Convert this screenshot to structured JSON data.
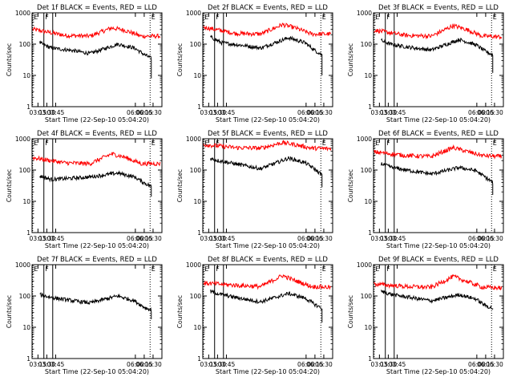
{
  "chart_data": [
    {
      "type": "line",
      "title": "Det 1f BLACK = Events, RED = LLD",
      "xlabel": "Start Time (22-Sep-10 05:04:20)",
      "ylabel": "Counts/sec",
      "yscale": "log",
      "ylim": [
        1,
        1000
      ],
      "xlim": [
        "03:05",
        "06:45"
      ],
      "x_ticks": [
        "03:15",
        "03:30",
        "03:45",
        "06:00",
        "06:15",
        "06:30"
      ],
      "y_ticks": [
        "1",
        "10",
        "100",
        "1000"
      ],
      "markers": [
        {
          "label": "E",
          "t": "03:06"
        },
        {
          "label": "F",
          "t": "03:25"
        },
        {
          "label": "",
          "t": "03:40"
        },
        {
          "label": "E",
          "t": "06:25"
        }
      ],
      "series": [
        {
          "name": "RED = LLD",
          "color": "#ff0000",
          "t_start": "03:06",
          "t_end": "06:42",
          "points": [
            [
              0,
              300
            ],
            [
              0.25,
              190
            ],
            [
              0.45,
              180
            ],
            [
              0.62,
              330
            ],
            [
              0.72,
              280
            ],
            [
              0.85,
              180
            ],
            [
              1,
              180
            ]
          ]
        },
        {
          "name": "BLACK = Events",
          "color": "#000000",
          "t_start": "03:18",
          "t_end": "06:27",
          "points": [
            [
              0,
              110
            ],
            [
              0.1,
              75
            ],
            [
              0.3,
              62
            ],
            [
              0.45,
              50
            ],
            [
              0.7,
              100
            ],
            [
              0.85,
              75
            ],
            [
              0.93,
              48
            ],
            [
              1,
              35
            ]
          ],
          "drop": 8
        }
      ]
    },
    {
      "type": "line",
      "title": "Det 2f BLACK = Events, RED = LLD",
      "xlabel": "Start Time (22-Sep-10 05:04:20)",
      "ylabel": "Counts/sec",
      "yscale": "log",
      "ylim": [
        1,
        1000
      ],
      "xlim": [
        "03:05",
        "06:45"
      ],
      "x_ticks": [
        "03:15",
        "03:30",
        "03:45",
        "06:00",
        "06:15",
        "06:30"
      ],
      "y_ticks": [
        "1",
        "10",
        "100",
        "1000"
      ],
      "markers": [
        {
          "label": "E",
          "t": "03:06"
        },
        {
          "label": "F",
          "t": "03:25"
        },
        {
          "label": "",
          "t": "03:40"
        },
        {
          "label": "E",
          "t": "06:25"
        }
      ],
      "series": [
        {
          "name": "RED = LLD",
          "color": "#ff0000",
          "t_start": "03:06",
          "t_end": "06:42",
          "points": [
            [
              0,
              350
            ],
            [
              0.25,
              220
            ],
            [
              0.45,
              210
            ],
            [
              0.62,
              420
            ],
            [
              0.72,
              330
            ],
            [
              0.85,
              210
            ],
            [
              1,
              210
            ]
          ]
        },
        {
          "name": "BLACK = Events",
          "color": "#000000",
          "t_start": "03:18",
          "t_end": "06:27",
          "points": [
            [
              0,
              170
            ],
            [
              0.1,
              110
            ],
            [
              0.3,
              90
            ],
            [
              0.45,
              75
            ],
            [
              0.7,
              160
            ],
            [
              0.85,
              110
            ],
            [
              0.93,
              65
            ],
            [
              1,
              45
            ]
          ],
          "drop": 10
        }
      ]
    },
    {
      "type": "line",
      "title": "Det 3f BLACK = Events, RED = LLD",
      "xlabel": "Start Time (22-Sep-10 05:04:20)",
      "ylabel": "Counts/sec",
      "yscale": "log",
      "ylim": [
        1,
        1000
      ],
      "xlim": [
        "03:05",
        "06:45"
      ],
      "x_ticks": [
        "03:15",
        "03:30",
        "03:45",
        "06:00",
        "06:15",
        "06:30"
      ],
      "y_ticks": [
        "1",
        "10",
        "100",
        "1000"
      ],
      "markers": [
        {
          "label": "E",
          "t": "03:06"
        },
        {
          "label": "F",
          "t": "03:25"
        },
        {
          "label": "",
          "t": "03:40"
        },
        {
          "label": "E",
          "t": "06:25"
        }
      ],
      "series": [
        {
          "name": "RED = LLD",
          "color": "#ff0000",
          "t_start": "03:06",
          "t_end": "06:42",
          "points": [
            [
              0,
              280
            ],
            [
              0.25,
              190
            ],
            [
              0.45,
              180
            ],
            [
              0.62,
              390
            ],
            [
              0.72,
              300
            ],
            [
              0.85,
              180
            ],
            [
              1,
              170
            ]
          ]
        },
        {
          "name": "BLACK = Events",
          "color": "#000000",
          "t_start": "03:18",
          "t_end": "06:27",
          "points": [
            [
              0,
              130
            ],
            [
              0.1,
              95
            ],
            [
              0.3,
              75
            ],
            [
              0.45,
              65
            ],
            [
              0.7,
              140
            ],
            [
              0.85,
              95
            ],
            [
              0.93,
              60
            ],
            [
              1,
              45
            ]
          ],
          "drop": 12
        }
      ]
    },
    {
      "type": "line",
      "title": "Det 4f BLACK = Events, RED = LLD",
      "xlabel": "Start Time (22-Sep-10 05:04:20)",
      "ylabel": "Counts/sec",
      "yscale": "log",
      "ylim": [
        1,
        1000
      ],
      "xlim": [
        "03:05",
        "06:45"
      ],
      "x_ticks": [
        "03:15",
        "03:30",
        "03:45",
        "06:00",
        "06:15",
        "06:30"
      ],
      "y_ticks": [
        "1",
        "10",
        "100",
        "1000"
      ],
      "markers": [
        {
          "label": "E",
          "t": "03:06"
        },
        {
          "label": "F",
          "t": "03:25"
        },
        {
          "label": "",
          "t": "03:40"
        },
        {
          "label": "E",
          "t": "06:25"
        }
      ],
      "series": [
        {
          "name": "RED = LLD",
          "color": "#ff0000",
          "t_start": "03:06",
          "t_end": "06:42",
          "points": [
            [
              0,
              250
            ],
            [
              0.25,
              170
            ],
            [
              0.45,
              160
            ],
            [
              0.62,
              330
            ],
            [
              0.72,
              260
            ],
            [
              0.85,
              160
            ],
            [
              1,
              160
            ]
          ]
        },
        {
          "name": "BLACK = Events",
          "color": "#000000",
          "t_start": "03:18",
          "t_end": "06:27",
          "points": [
            [
              0,
              65
            ],
            [
              0.1,
              50
            ],
            [
              0.3,
              55
            ],
            [
              0.45,
              60
            ],
            [
              0.7,
              80
            ],
            [
              0.85,
              60
            ],
            [
              0.93,
              40
            ],
            [
              1,
              30
            ]
          ],
          "drop": 14
        }
      ]
    },
    {
      "type": "line",
      "title": "Det 5f BLACK = Events, RED = LLD",
      "xlabel": "Start Time (22-Sep-10 05:04:20)",
      "ylabel": "Counts/sec",
      "yscale": "log",
      "ylim": [
        1,
        1000
      ],
      "xlim": [
        "03:05",
        "06:45"
      ],
      "x_ticks": [
        "03:15",
        "03:30",
        "03:45",
        "06:00",
        "06:15",
        "06:30"
      ],
      "y_ticks": [
        "1",
        "10",
        "100",
        "1000"
      ],
      "markers": [
        {
          "label": "E",
          "t": "03:06"
        },
        {
          "label": "F",
          "t": "03:25"
        },
        {
          "label": "",
          "t": "03:40"
        },
        {
          "label": "E",
          "t": "06:25"
        }
      ],
      "series": [
        {
          "name": "RED = LLD",
          "color": "#ff0000",
          "t_start": "03:06",
          "t_end": "06:42",
          "points": [
            [
              0,
              650
            ],
            [
              0.25,
              520
            ],
            [
              0.45,
              500
            ],
            [
              0.62,
              750
            ],
            [
              0.72,
              650
            ],
            [
              0.85,
              500
            ],
            [
              1,
              480
            ]
          ]
        },
        {
          "name": "BLACK = Events",
          "color": "#000000",
          "t_start": "03:18",
          "t_end": "06:27",
          "points": [
            [
              0,
              230
            ],
            [
              0.1,
              190
            ],
            [
              0.3,
              140
            ],
            [
              0.45,
              110
            ],
            [
              0.7,
              240
            ],
            [
              0.85,
              170
            ],
            [
              0.93,
              110
            ],
            [
              1,
              70
            ]
          ],
          "drop": 28
        }
      ]
    },
    {
      "type": "line",
      "title": "Det 6f BLACK = Events, RED = LLD",
      "xlabel": "Start Time (22-Sep-10 05:04:20)",
      "ylabel": "Counts/sec",
      "yscale": "log",
      "ylim": [
        1,
        1000
      ],
      "xlim": [
        "03:05",
        "06:45"
      ],
      "x_ticks": [
        "03:15",
        "03:30",
        "03:45",
        "06:00",
        "06:15",
        "06:30"
      ],
      "y_ticks": [
        "1",
        "10",
        "100",
        "1000"
      ],
      "markers": [
        {
          "label": "E",
          "t": "03:06"
        },
        {
          "label": "F",
          "t": "03:25"
        },
        {
          "label": "",
          "t": "03:40"
        },
        {
          "label": "E",
          "t": "06:25"
        }
      ],
      "series": [
        {
          "name": "RED = LLD",
          "color": "#ff0000",
          "t_start": "03:06",
          "t_end": "06:42",
          "points": [
            [
              0,
              380
            ],
            [
              0.25,
              290
            ],
            [
              0.45,
              270
            ],
            [
              0.62,
              520
            ],
            [
              0.72,
              400
            ],
            [
              0.85,
              290
            ],
            [
              1,
              270
            ]
          ]
        },
        {
          "name": "BLACK = Events",
          "color": "#000000",
          "t_start": "03:18",
          "t_end": "06:27",
          "points": [
            [
              0,
              160
            ],
            [
              0.1,
              120
            ],
            [
              0.3,
              90
            ],
            [
              0.45,
              75
            ],
            [
              0.7,
              120
            ],
            [
              0.85,
              95
            ],
            [
              0.93,
              60
            ],
            [
              1,
              40
            ]
          ],
          "drop": 16
        }
      ]
    },
    {
      "type": "line",
      "title": "Det 7f BLACK = Events, RED = LLD",
      "xlabel": "Start Time (22-Sep-10 05:04:20)",
      "ylabel": "Counts/sec",
      "yscale": "log",
      "ylim": [
        1,
        1000
      ],
      "xlim": [
        "03:05",
        "06:45"
      ],
      "x_ticks": [
        "03:15",
        "03:30",
        "03:45",
        "06:00",
        "06:15",
        "06:30"
      ],
      "y_ticks": [
        "1",
        "10",
        "100",
        "1000"
      ],
      "markers": [
        {
          "label": "E",
          "t": "03:06"
        },
        {
          "label": "F",
          "t": "03:25"
        },
        {
          "label": "",
          "t": "03:40"
        },
        {
          "label": "E",
          "t": "06:25"
        }
      ],
      "series": [
        {
          "name": "BLACK = Events",
          "color": "#000000",
          "t_start": "03:18",
          "t_end": "06:27",
          "points": [
            [
              0,
              110
            ],
            [
              0.1,
              90
            ],
            [
              0.3,
              70
            ],
            [
              0.45,
              60
            ],
            [
              0.7,
              100
            ],
            [
              0.85,
              70
            ],
            [
              0.93,
              45
            ],
            [
              1,
              35
            ]
          ],
          "drop": 18
        }
      ]
    },
    {
      "type": "line",
      "title": "Det 8f BLACK = Events, RED = LLD",
      "xlabel": "Start Time (22-Sep-10 05:04:20)",
      "ylabel": "Counts/sec",
      "yscale": "log",
      "ylim": [
        1,
        1000
      ],
      "xlim": [
        "03:05",
        "06:45"
      ],
      "x_ticks": [
        "03:15",
        "03:30",
        "03:45",
        "06:00",
        "06:15",
        "06:30"
      ],
      "y_ticks": [
        "1",
        "10",
        "100",
        "1000"
      ],
      "markers": [
        {
          "label": "E",
          "t": "03:06"
        },
        {
          "label": "F",
          "t": "03:25"
        },
        {
          "label": "",
          "t": "03:40"
        },
        {
          "label": "E",
          "t": "06:25"
        }
      ],
      "series": [
        {
          "name": "RED = LLD",
          "color": "#ff0000",
          "t_start": "03:06",
          "t_end": "06:42",
          "points": [
            [
              0,
              260
            ],
            [
              0.25,
              220
            ],
            [
              0.45,
              200
            ],
            [
              0.62,
              450
            ],
            [
              0.72,
              310
            ],
            [
              0.85,
              200
            ],
            [
              1,
              190
            ]
          ]
        },
        {
          "name": "BLACK = Events",
          "color": "#000000",
          "t_start": "03:18",
          "t_end": "06:27",
          "points": [
            [
              0,
              140
            ],
            [
              0.1,
              110
            ],
            [
              0.3,
              80
            ],
            [
              0.45,
              65
            ],
            [
              0.7,
              120
            ],
            [
              0.85,
              85
            ],
            [
              0.93,
              55
            ],
            [
              1,
              40
            ]
          ],
          "drop": 14
        }
      ]
    },
    {
      "type": "line",
      "title": "Det 9f BLACK = Events, RED = LLD",
      "xlabel": "Start Time (22-Sep-10 05:04:20)",
      "ylabel": "Counts/sec",
      "yscale": "log",
      "ylim": [
        1,
        1000
      ],
      "xlim": [
        "03:05",
        "06:45"
      ],
      "x_ticks": [
        "03:15",
        "03:30",
        "03:45",
        "06:00",
        "06:15",
        "06:30"
      ],
      "y_ticks": [
        "1",
        "10",
        "100",
        "1000"
      ],
      "markers": [
        {
          "label": "E",
          "t": "03:06"
        },
        {
          "label": "F",
          "t": "03:25"
        },
        {
          "label": "",
          "t": "03:40"
        },
        {
          "label": "E",
          "t": "06:25"
        }
      ],
      "series": [
        {
          "name": "RED = LLD",
          "color": "#ff0000",
          "t_start": "03:06",
          "t_end": "06:42",
          "points": [
            [
              0,
              240
            ],
            [
              0.25,
              200
            ],
            [
              0.45,
              190
            ],
            [
              0.62,
              420
            ],
            [
              0.72,
              300
            ],
            [
              0.85,
              190
            ],
            [
              1,
              180
            ]
          ]
        },
        {
          "name": "BLACK = Events",
          "color": "#000000",
          "t_start": "03:18",
          "t_end": "06:27",
          "points": [
            [
              0,
              140
            ],
            [
              0.1,
              110
            ],
            [
              0.3,
              85
            ],
            [
              0.45,
              70
            ],
            [
              0.7,
              110
            ],
            [
              0.85,
              80
            ],
            [
              0.93,
              50
            ],
            [
              1,
              40
            ]
          ],
          "drop": 40
        }
      ]
    }
  ]
}
